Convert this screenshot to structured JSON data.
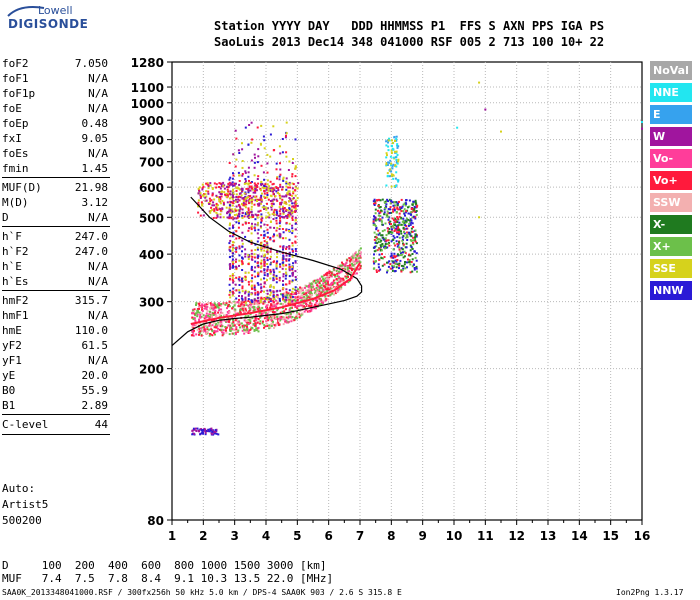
{
  "logo": {
    "top": "Lowell",
    "main": "DIGISONDE"
  },
  "header": {
    "line1": "Station YYYY DAY   DDD HHMMSS P1  FFS S AXN PPS IGA PS",
    "line2": "SaoLuis 2013 Dec14 348 041000 RSF 005 2 713 100 10+ 22"
  },
  "params": [
    {
      "name": "foF2",
      "value": "7.050"
    },
    {
      "name": "foF1",
      "value": "N/A"
    },
    {
      "name": "foF1p",
      "value": "N/A"
    },
    {
      "name": "foE",
      "value": "N/A"
    },
    {
      "name": "foEp",
      "value": "0.48"
    },
    {
      "name": "fxI",
      "value": "9.05"
    },
    {
      "name": "foEs",
      "value": "N/A"
    },
    {
      "name": "fmin",
      "value": "1.45"
    },
    {
      "name": "MUF(D)",
      "value": "21.98",
      "sep": true
    },
    {
      "name": "M(D)",
      "value": "3.12"
    },
    {
      "name": "D",
      "value": "N/A"
    },
    {
      "name": "h`F",
      "value": "247.0",
      "sep": true
    },
    {
      "name": "h`F2",
      "value": "247.0"
    },
    {
      "name": "h`E",
      "value": "N/A"
    },
    {
      "name": "h`Es",
      "value": "N/A"
    },
    {
      "name": "hmF2",
      "value": "315.7",
      "sep": true
    },
    {
      "name": "hmF1",
      "value": "N/A"
    },
    {
      "name": "hmE",
      "value": "110.0"
    },
    {
      "name": "yF2",
      "value": "61.5"
    },
    {
      "name": "yF1",
      "value": "N/A"
    },
    {
      "name": "yE",
      "value": "20.0"
    },
    {
      "name": "B0",
      "value": "55.9"
    },
    {
      "name": "B1",
      "value": "2.89"
    },
    {
      "name": "C-level",
      "value": "44",
      "sep": true
    }
  ],
  "auto": {
    "label": "Auto:",
    "artist": "Artist5",
    "version": "500200"
  },
  "muf_table": {
    "d_row": "D     100  200  400  600  800 1000 1500 3000 [km]",
    "muf_row": "MUF   7.4  7.5  7.8  8.4  9.1 10.3 13.5 22.0 [MHz]"
  },
  "footer": {
    "left": "SAA0K_2013348041000.RSF / 300fx256h 50 kHz 5.0 km / DPS-4 SAA0K 903 / 2.6 S 315.8 E",
    "right": "Ion2Png 1.3.17"
  },
  "legend": [
    {
      "label": "NoVal",
      "color": "#a8a8a8"
    },
    {
      "label": "NNE",
      "color": "#22e6f0"
    },
    {
      "label": "E",
      "color": "#36a2ee"
    },
    {
      "label": "W",
      "color": "#a0159e"
    },
    {
      "label": "Vo-",
      "color": "#ff3d9a"
    },
    {
      "label": "Vo+",
      "color": "#ff1a3c"
    },
    {
      "label": "SSW",
      "color": "#f3b0b0"
    },
    {
      "label": "X-",
      "color": "#1f7a1f"
    },
    {
      "label": "X+",
      "color": "#6cc04a"
    },
    {
      "label": "SSE",
      "color": "#d6d21c"
    },
    {
      "label": "NNW",
      "color": "#2a1ad6"
    }
  ],
  "chart_data": {
    "type": "scatter",
    "title": "",
    "xlabel": "",
    "ylabel": "",
    "xlim": [
      1,
      16
    ],
    "ylim": [
      80,
      1280
    ],
    "y_scale": "log",
    "grid": true,
    "x_ticks": [
      "1",
      "2",
      "3",
      "4",
      "5",
      "6",
      "7",
      "8",
      "9",
      "10",
      "11",
      "12",
      "13",
      "14",
      "15",
      "16"
    ],
    "y_ticks": [
      {
        "value": 80,
        "label": "80"
      },
      {
        "value": 200,
        "label": "200"
      },
      {
        "value": 300,
        "label": "300"
      },
      {
        "value": 400,
        "label": "400"
      },
      {
        "value": 500,
        "label": "500"
      },
      {
        "value": 600,
        "label": "600"
      },
      {
        "value": 700,
        "label": "700"
      },
      {
        "value": 800,
        "label": "800"
      },
      {
        "value": 900,
        "label": "900"
      },
      {
        "value": 1000,
        "label": "1000"
      },
      {
        "value": 1100,
        "label": "1100"
      },
      {
        "value": 1280,
        "label": "1280"
      }
    ],
    "echo_regions": [
      {
        "name": "F-trace",
        "f": [
          1.6,
          7.0
        ],
        "h": [
          260,
          380
        ],
        "colors": [
          "Vo+",
          "Vo-",
          "SSW",
          "X+"
        ]
      },
      {
        "name": "spread-F vertical",
        "f": [
          2.8,
          5.0
        ],
        "h": [
          300,
          950
        ],
        "colors": [
          "W",
          "Vo+",
          "SSE",
          "NNW"
        ]
      },
      {
        "name": "multi-hop cluster",
        "f": [
          1.8,
          5.0
        ],
        "h": [
          500,
          620
        ],
        "colors": [
          "SSE",
          "Vo+",
          "W"
        ]
      },
      {
        "name": "X-component cluster",
        "f": [
          7.4,
          8.8
        ],
        "h": [
          360,
          560
        ],
        "colors": [
          "NNW",
          "X-",
          "X+",
          "Vo+"
        ]
      },
      {
        "name": "oblique high",
        "f": [
          7.8,
          8.2
        ],
        "h": [
          600,
          820
        ],
        "colors": [
          "SSE",
          "E",
          "NNE"
        ]
      },
      {
        "name": "Es",
        "f": [
          1.6,
          2.5
        ],
        "h": [
          135,
          140
        ],
        "colors": [
          "W",
          "NNW"
        ]
      }
    ],
    "isolated_points": [
      {
        "f": 10.1,
        "h": 860,
        "color": "NNE"
      },
      {
        "f": 10.8,
        "h": 1130,
        "color": "SSE"
      },
      {
        "f": 11.0,
        "h": 960,
        "color": "W"
      },
      {
        "f": 11.5,
        "h": 840,
        "color": "SSE"
      },
      {
        "f": 10.8,
        "h": 500,
        "color": "SSE"
      },
      {
        "f": 16.0,
        "h": 855,
        "color": "W"
      },
      {
        "f": 16.0,
        "h": 890,
        "color": "NNE"
      }
    ],
    "profile_line": [
      {
        "f": 1.0,
        "h": 230
      },
      {
        "f": 1.5,
        "h": 250
      },
      {
        "f": 2.0,
        "h": 262
      },
      {
        "f": 2.5,
        "h": 268
      },
      {
        "f": 3.0,
        "h": 271
      },
      {
        "f": 3.5,
        "h": 273
      },
      {
        "f": 4.0,
        "h": 276
      },
      {
        "f": 4.5,
        "h": 279
      },
      {
        "f": 5.0,
        "h": 284
      },
      {
        "f": 5.5,
        "h": 290
      },
      {
        "f": 6.0,
        "h": 296
      },
      {
        "f": 6.5,
        "h": 302
      },
      {
        "f": 6.9,
        "h": 310
      },
      {
        "f": 7.05,
        "h": 318
      },
      {
        "f": 7.05,
        "h": 330
      },
      {
        "f": 6.9,
        "h": 345
      },
      {
        "f": 6.4,
        "h": 365
      },
      {
        "f": 5.5,
        "h": 385
      },
      {
        "f": 4.5,
        "h": 405
      },
      {
        "f": 3.5,
        "h": 430
      },
      {
        "f": 2.8,
        "h": 460
      },
      {
        "f": 2.2,
        "h": 500
      },
      {
        "f": 1.6,
        "h": 565
      }
    ],
    "o_trace_fit": [
      {
        "f": 1.6,
        "h": 262
      },
      {
        "f": 2.5,
        "h": 272
      },
      {
        "f": 3.5,
        "h": 280
      },
      {
        "f": 4.5,
        "h": 290
      },
      {
        "f": 5.5,
        "h": 305
      },
      {
        "f": 6.2,
        "h": 322
      },
      {
        "f": 6.7,
        "h": 345
      },
      {
        "f": 7.0,
        "h": 380
      }
    ]
  }
}
